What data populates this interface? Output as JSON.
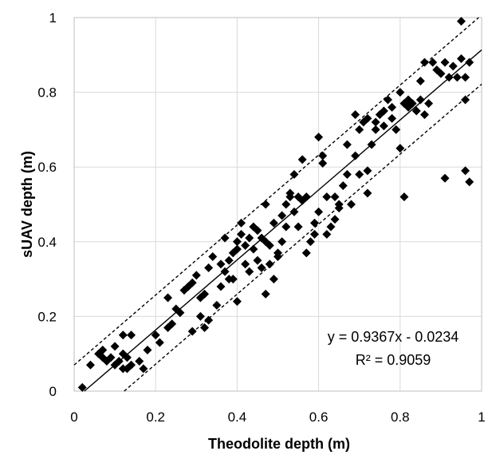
{
  "chart_data": {
    "type": "scatter",
    "title": "",
    "xlabel": "Theodolite depth (m)",
    "ylabel": "sUAV depth (m)",
    "xlim": [
      0,
      1
    ],
    "ylim": [
      0,
      1
    ],
    "x_ticks": [
      "0",
      "0.2",
      "0.4",
      "0.6",
      "0.8",
      "1"
    ],
    "y_ticks": [
      "0",
      "0.2",
      "0.4",
      "0.6",
      "0.8",
      "1"
    ],
    "grid": true,
    "legend": "none",
    "marker": "diamond",
    "marker_color": "#000000",
    "annotations": {
      "equation": "y = 0.9367x - 0.0234",
      "r_squared": "R² = 0.9059"
    },
    "trendline": {
      "slope": 0.9367,
      "intercept": -0.0234,
      "style": "solid"
    },
    "bounds": [
      {
        "slope": 0.9367,
        "intercept": 0.07,
        "style": "dashed"
      },
      {
        "slope": 0.9367,
        "intercept": -0.115,
        "style": "dashed"
      }
    ],
    "points": [
      [
        0.02,
        0.01
      ],
      [
        0.04,
        0.07
      ],
      [
        0.06,
        0.1
      ],
      [
        0.07,
        0.11
      ],
      [
        0.07,
        0.09
      ],
      [
        0.08,
        0.08
      ],
      [
        0.09,
        0.09
      ],
      [
        0.1,
        0.07
      ],
      [
        0.1,
        0.12
      ],
      [
        0.11,
        0.08
      ],
      [
        0.12,
        0.06
      ],
      [
        0.12,
        0.1
      ],
      [
        0.12,
        0.15
      ],
      [
        0.13,
        0.06
      ],
      [
        0.13,
        0.09
      ],
      [
        0.14,
        0.07
      ],
      [
        0.14,
        0.15
      ],
      [
        0.16,
        0.08
      ],
      [
        0.17,
        0.06
      ],
      [
        0.18,
        0.11
      ],
      [
        0.2,
        0.15
      ],
      [
        0.21,
        0.13
      ],
      [
        0.23,
        0.17
      ],
      [
        0.23,
        0.25
      ],
      [
        0.24,
        0.18
      ],
      [
        0.25,
        0.22
      ],
      [
        0.26,
        0.21
      ],
      [
        0.27,
        0.27
      ],
      [
        0.28,
        0.28
      ],
      [
        0.29,
        0.29
      ],
      [
        0.29,
        0.16
      ],
      [
        0.3,
        0.31
      ],
      [
        0.31,
        0.2
      ],
      [
        0.31,
        0.25
      ],
      [
        0.32,
        0.26
      ],
      [
        0.32,
        0.17
      ],
      [
        0.33,
        0.19
      ],
      [
        0.33,
        0.33
      ],
      [
        0.34,
        0.36
      ],
      [
        0.35,
        0.23
      ],
      [
        0.36,
        0.28
      ],
      [
        0.36,
        0.34
      ],
      [
        0.37,
        0.32
      ],
      [
        0.37,
        0.41
      ],
      [
        0.38,
        0.3
      ],
      [
        0.38,
        0.35
      ],
      [
        0.39,
        0.3
      ],
      [
        0.39,
        0.37
      ],
      [
        0.4,
        0.38
      ],
      [
        0.4,
        0.24
      ],
      [
        0.4,
        0.4
      ],
      [
        0.41,
        0.42
      ],
      [
        0.41,
        0.45
      ],
      [
        0.42,
        0.39
      ],
      [
        0.42,
        0.34
      ],
      [
        0.43,
        0.41
      ],
      [
        0.43,
        0.32
      ],
      [
        0.44,
        0.38
      ],
      [
        0.44,
        0.44
      ],
      [
        0.45,
        0.43
      ],
      [
        0.45,
        0.35
      ],
      [
        0.46,
        0.41
      ],
      [
        0.46,
        0.33
      ],
      [
        0.47,
        0.4
      ],
      [
        0.47,
        0.26
      ],
      [
        0.47,
        0.5
      ],
      [
        0.48,
        0.39
      ],
      [
        0.48,
        0.34
      ],
      [
        0.49,
        0.3
      ],
      [
        0.49,
        0.45
      ],
      [
        0.5,
        0.37
      ],
      [
        0.5,
        0.36
      ],
      [
        0.51,
        0.4
      ],
      [
        0.51,
        0.47
      ],
      [
        0.52,
        0.5
      ],
      [
        0.52,
        0.44
      ],
      [
        0.53,
        0.52
      ],
      [
        0.53,
        0.53
      ],
      [
        0.54,
        0.48
      ],
      [
        0.54,
        0.58
      ],
      [
        0.55,
        0.52
      ],
      [
        0.55,
        0.44
      ],
      [
        0.56,
        0.62
      ],
      [
        0.56,
        0.51
      ],
      [
        0.57,
        0.52
      ],
      [
        0.57,
        0.37
      ],
      [
        0.58,
        0.4
      ],
      [
        0.59,
        0.45
      ],
      [
        0.59,
        0.42
      ],
      [
        0.6,
        0.68
      ],
      [
        0.6,
        0.48
      ],
      [
        0.61,
        0.63
      ],
      [
        0.61,
        0.61
      ],
      [
        0.62,
        0.52
      ],
      [
        0.62,
        0.42
      ],
      [
        0.63,
        0.44
      ],
      [
        0.64,
        0.46
      ],
      [
        0.65,
        0.49
      ],
      [
        0.65,
        0.5
      ],
      [
        0.66,
        0.55
      ],
      [
        0.67,
        0.58
      ],
      [
        0.67,
        0.66
      ],
      [
        0.68,
        0.5
      ],
      [
        0.69,
        0.63
      ],
      [
        0.69,
        0.74
      ],
      [
        0.7,
        0.58
      ],
      [
        0.7,
        0.7
      ],
      [
        0.71,
        0.72
      ],
      [
        0.72,
        0.73
      ],
      [
        0.72,
        0.59
      ],
      [
        0.72,
        0.53
      ],
      [
        0.73,
        0.66
      ],
      [
        0.74,
        0.7
      ],
      [
        0.75,
        0.74
      ],
      [
        0.76,
        0.75
      ],
      [
        0.76,
        0.71
      ],
      [
        0.77,
        0.78
      ],
      [
        0.78,
        0.73
      ],
      [
        0.78,
        0.76
      ],
      [
        0.79,
        0.7
      ],
      [
        0.8,
        0.8
      ],
      [
        0.8,
        0.65
      ],
      [
        0.81,
        0.52
      ],
      [
        0.81,
        0.77
      ],
      [
        0.82,
        0.76
      ],
      [
        0.83,
        0.77
      ],
      [
        0.84,
        0.75
      ],
      [
        0.85,
        0.83
      ],
      [
        0.85,
        0.78
      ],
      [
        0.86,
        0.74
      ],
      [
        0.86,
        0.88
      ],
      [
        0.87,
        0.77
      ],
      [
        0.88,
        0.88
      ],
      [
        0.89,
        0.86
      ],
      [
        0.9,
        0.85
      ],
      [
        0.91,
        0.57
      ],
      [
        0.91,
        0.88
      ],
      [
        0.92,
        0.84
      ],
      [
        0.93,
        0.87
      ],
      [
        0.94,
        0.84
      ],
      [
        0.95,
        0.99
      ],
      [
        0.95,
        0.89
      ],
      [
        0.96,
        0.59
      ],
      [
        0.96,
        0.84
      ],
      [
        0.96,
        0.78
      ],
      [
        0.97,
        0.56
      ],
      [
        0.97,
        0.88
      ],
      [
        0.82,
        0.78
      ],
      [
        0.74,
        0.72
      ],
      [
        0.64,
        0.52
      ]
    ]
  }
}
